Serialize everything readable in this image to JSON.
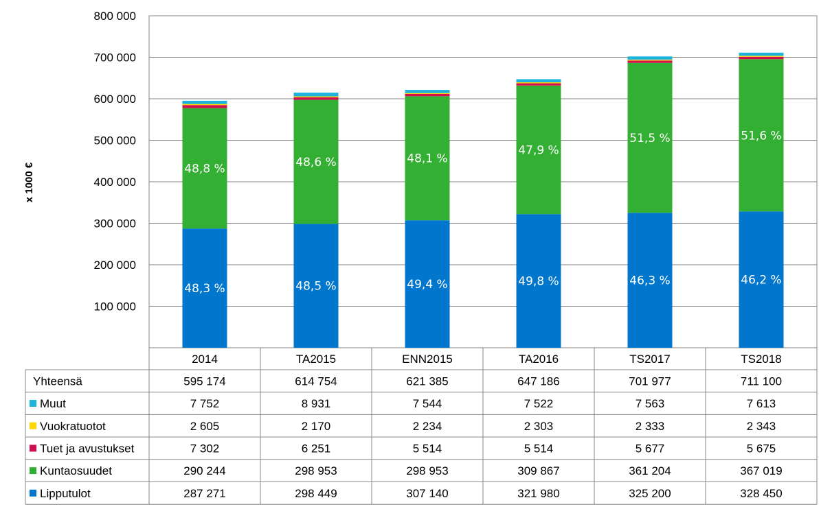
{
  "chart_data": {
    "type": "bar",
    "stacked": true,
    "ylabel": "x 1000 €",
    "ylim": [
      0,
      800000
    ],
    "yticks": [
      "",
      "100 000",
      "200 000",
      "300 000",
      "400 000",
      "500 000",
      "600 000",
      "700 000",
      "800 000"
    ],
    "grid": true,
    "categories": [
      "2014",
      "TA2015",
      "ENN2015",
      "TA2016",
      "TS2017",
      "TS2018"
    ],
    "totals_label": "Yhteensä",
    "totals": [
      "595 174",
      "614 754",
      "621 385",
      "647 186",
      "701 977",
      "711 100"
    ],
    "series": [
      {
        "name": "Lipputulot",
        "color": "#0077cc",
        "values": [
          287271,
          298449,
          307140,
          321980,
          325200,
          328450
        ],
        "display": [
          "287 271",
          "298 449",
          "307 140",
          "321 980",
          "325 200",
          "328 450"
        ],
        "percent_labels": [
          "48,3 %",
          "48,5 %",
          "49,4 %",
          "49,8 %",
          "46,3 %",
          "46,2 %"
        ]
      },
      {
        "name": "Kuntaosuudet",
        "color": "#33b033",
        "values": [
          290244,
          298953,
          298953,
          309867,
          361204,
          367019
        ],
        "display": [
          "290 244",
          "298 953",
          "298 953",
          "309 867",
          "361 204",
          "367 019"
        ],
        "percent_labels": [
          "48,8 %",
          "48,6 %",
          "48,1 %",
          "47,9 %",
          "51,5 %",
          "51,6 %"
        ]
      },
      {
        "name": "Tuet ja avustukset",
        "color": "#d0104c",
        "values": [
          7302,
          6251,
          5514,
          5514,
          5677,
          5675
        ],
        "display": [
          "7 302",
          "6 251",
          "5 514",
          "5 514",
          "5 677",
          "5 675"
        ]
      },
      {
        "name": "Vuokratuotot",
        "color": "#ffd700",
        "values": [
          2605,
          2170,
          2234,
          2303,
          2333,
          2343
        ],
        "display": [
          "2 605",
          "2 170",
          "2 234",
          "2 303",
          "2 333",
          "2 343"
        ]
      },
      {
        "name": "Muut",
        "color": "#1cb4dc",
        "values": [
          7752,
          8931,
          7544,
          7522,
          7563,
          7613
        ],
        "display": [
          "7 752",
          "8 931",
          "7 544",
          "7 522",
          "7 563",
          "7 613"
        ]
      }
    ]
  }
}
